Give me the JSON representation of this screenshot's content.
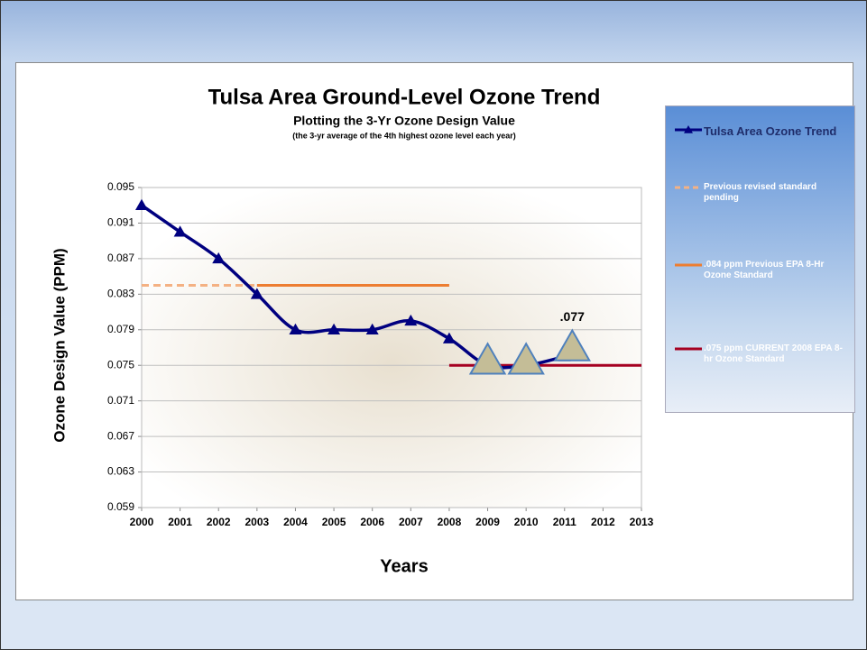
{
  "chart_data": {
    "type": "line",
    "title": "Tulsa Area Ground-Level Ozone Trend",
    "subtitle": "Plotting the 3-Yr Ozone Design Value",
    "note": "(the 3-yr average of the 4th highest ozone level each year)",
    "x_label": "Years",
    "y_label": "Ozone Design Value (PPM)",
    "xlim": [
      2000,
      2013
    ],
    "xticks": [
      2000,
      2001,
      2002,
      2003,
      2004,
      2005,
      2006,
      2007,
      2008,
      2009,
      2010,
      2011,
      2012,
      2013
    ],
    "ylim": [
      0.059,
      0.095
    ],
    "yticks": [
      0.059,
      0.063,
      0.067,
      0.071,
      0.075,
      0.079,
      0.083,
      0.087,
      0.091,
      0.095
    ],
    "grid": true,
    "legend": "right",
    "series": [
      {
        "name": "Tulsa Area Ozone Trend",
        "color": "#000080",
        "marker": "triangle",
        "x": [
          2000,
          2001,
          2002,
          2003,
          2004,
          2005,
          2006,
          2007,
          2008,
          2009,
          2010,
          2011
        ],
        "values": [
          0.093,
          0.09,
          0.087,
          0.083,
          0.079,
          0.079,
          0.079,
          0.08,
          0.078,
          0.075,
          0.075,
          0.076
        ]
      },
      {
        "name": "Previous revised standard pending",
        "color": "#f4b183",
        "dashed": true,
        "x": [
          2000,
          2003
        ],
        "values": [
          0.084,
          0.084
        ]
      },
      {
        "name": ".084 ppm Previous EPA 8-Hr Ozone Standard",
        "color": "#ed7d31",
        "x": [
          2003,
          2008
        ],
        "values": [
          0.084,
          0.084
        ]
      },
      {
        "name": ".075 ppm CURRENT 2008 EPA 8-hr Ozone Standard",
        "color": "#a50021",
        "x": [
          2008,
          2013
        ],
        "values": [
          0.075,
          0.075
        ]
      }
    ],
    "highlights": {
      "color": "#c4bd97",
      "x": [
        2009,
        2010,
        2011.2
      ],
      "values": [
        0.0755,
        0.0755,
        0.077
      ],
      "value_labels": [
        null,
        null,
        ".077"
      ]
    }
  }
}
